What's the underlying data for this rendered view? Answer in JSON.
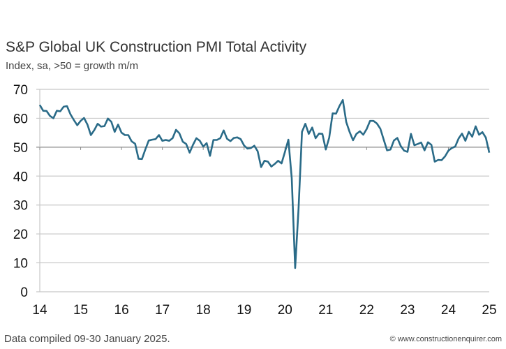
{
  "chart_data": {
    "type": "line",
    "title": "S&P Global UK Construction PMI Total Activity",
    "subtitle": "Index, sa, >50 = growth m/m",
    "x_tick_labels": [
      "14",
      "15",
      "16",
      "17",
      "18",
      "19",
      "20",
      "21",
      "22",
      "23",
      "24",
      "25"
    ],
    "y_tick_labels": [
      "0",
      "10",
      "20",
      "30",
      "40",
      "50",
      "60",
      "70"
    ],
    "ylim": [
      0,
      70
    ],
    "xlim": [
      "2014-01",
      "2025-01"
    ],
    "grid": true,
    "line_color": "#2a6b88",
    "reference_line": 50,
    "series": [
      {
        "start": "2014-01",
        "frequency": "monthly",
        "values": [
          64.6,
          62.6,
          62.5,
          60.8,
          60.0,
          62.6,
          62.4,
          64.0,
          64.2,
          61.4,
          59.4,
          57.6,
          59.1,
          60.1,
          57.8,
          54.2,
          55.9,
          58.1,
          57.1,
          57.3,
          59.9,
          58.8,
          55.3,
          57.8,
          55.0,
          54.2,
          54.2,
          52.0,
          51.2,
          46.0,
          45.9,
          49.2,
          52.3,
          52.6,
          52.8,
          54.2,
          52.2,
          52.5,
          52.2,
          53.1,
          56.0,
          54.8,
          51.9,
          51.1,
          48.1,
          50.8,
          53.1,
          52.2,
          50.2,
          51.4,
          47.0,
          52.5,
          52.5,
          53.1,
          55.8,
          52.9,
          52.1,
          53.2,
          53.4,
          52.8,
          50.6,
          49.5,
          49.7,
          50.5,
          48.6,
          43.1,
          45.3,
          45.0,
          43.3,
          44.2,
          45.3,
          44.4,
          48.4,
          52.6,
          39.3,
          8.2,
          28.9,
          55.3,
          58.1,
          54.6,
          56.8,
          53.1,
          54.7,
          54.6,
          49.2,
          53.3,
          61.7,
          61.6,
          64.2,
          66.3,
          58.7,
          55.2,
          52.4,
          54.6,
          55.5,
          54.3,
          56.3,
          59.1,
          59.1,
          58.2,
          56.4,
          52.6,
          48.9,
          49.2,
          52.3,
          53.2,
          50.4,
          48.8,
          48.4,
          54.6,
          50.7,
          51.1,
          51.6,
          48.9,
          51.7,
          50.8,
          45.0,
          45.6,
          45.5,
          46.8,
          48.8,
          49.7,
          50.2,
          53.0,
          54.7,
          52.2,
          55.3,
          53.6,
          57.2,
          54.3,
          55.2,
          53.3,
          48.1
        ]
      }
    ]
  },
  "footnote": "Data compiled 09-30 January 2025.",
  "credit": "© www.constructionenquirer.com"
}
